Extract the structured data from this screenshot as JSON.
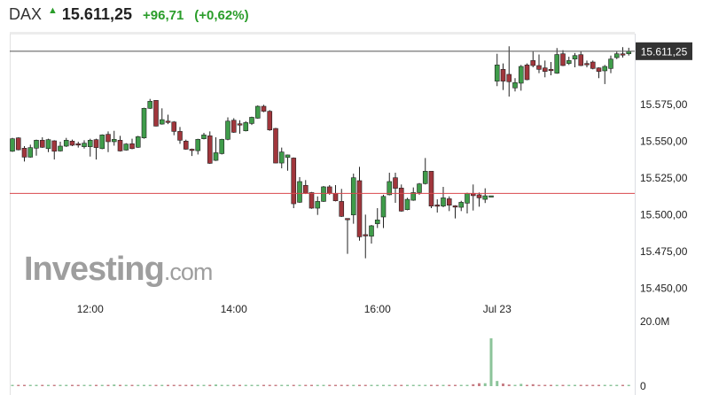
{
  "header": {
    "symbol": "DAX",
    "arrow_icon": "up-arrow-icon",
    "last": "15.611,25",
    "change": "+96,71",
    "change_pct": "(+0,62%)",
    "change_color": "#2a9d2a"
  },
  "watermark": {
    "brand": "Investing",
    "suffix": ".com"
  },
  "chart_data": {
    "type": "candlestick",
    "interval": "5 min",
    "last_price": 15611.25,
    "last_price_label": "15.611,25",
    "previous_close": 15514.54,
    "ylim": [
      15444,
      15623
    ],
    "y_ticks": [
      {
        "v": 15575,
        "label": "15.575,00"
      },
      {
        "v": 15550,
        "label": "15.550,00"
      },
      {
        "v": 15525,
        "label": "15.525,00"
      },
      {
        "v": 15500,
        "label": "15.500,00"
      },
      {
        "v": 15475,
        "label": "15.475,00"
      },
      {
        "v": 15450,
        "label": "15.450,00"
      }
    ],
    "x_ticks": [
      {
        "session": 0,
        "time": "12:00",
        "label": "12:00"
      },
      {
        "session": 0,
        "time": "14:00",
        "label": "14:00"
      },
      {
        "session": 0,
        "time": "16:00",
        "label": "16:00"
      },
      {
        "session": 1,
        "time": "09:00",
        "label": "Jul 23"
      }
    ],
    "volume_unit": "M",
    "volume_ticks": [
      {
        "v": 20,
        "label": "20.0M"
      },
      {
        "v": 0,
        "label": "0"
      }
    ],
    "colors": {
      "up": "#3f9c4a",
      "down": "#a1363c",
      "outline": "#222222",
      "vol_up": "#8cc49a",
      "vol_down": "#c77d84",
      "prev_close_line": "#d9474d",
      "last_line": "#555555",
      "label_bg": "#333333"
    },
    "columns": [
      "time",
      "open",
      "high",
      "low",
      "close",
      "volume_M"
    ],
    "sessions": [
      {
        "candles": [
          [
            "10:55",
            15543.2,
            15552.3,
            15542.8,
            15551.7,
            0.4
          ],
          [
            "11:00",
            15552.3,
            15552.7,
            15543.8,
            15544.2,
            0.4
          ],
          [
            "11:05",
            15545.3,
            15546.7,
            15536.2,
            15539.2,
            0.4
          ],
          [
            "11:10",
            15539.2,
            15547.7,
            15538.8,
            15545.7,
            0.4
          ],
          [
            "11:15",
            15545.3,
            15551.1,
            15540.2,
            15550.7,
            0.4
          ],
          [
            "11:20",
            15550.7,
            15552.7,
            15545.5,
            15545.9,
            0.4
          ],
          [
            "11:25",
            15545.0,
            15551.7,
            15542.6,
            15551.1,
            0.4
          ],
          [
            "11:30",
            15550.3,
            15550.7,
            15537.6,
            15543.2,
            0.4
          ],
          [
            "11:35",
            15543.4,
            15549.7,
            15543.0,
            15546.7,
            0.4
          ],
          [
            "11:40",
            15546.7,
            15552.3,
            15546.1,
            15550.7,
            0.4
          ],
          [
            "11:45",
            15550.1,
            15551.1,
            15546.7,
            15547.3,
            0.4
          ],
          [
            "11:50",
            15548.3,
            15549.7,
            15545.7,
            15547.5,
            0.4
          ],
          [
            "11:55",
            15546.3,
            15550.7,
            15545.0,
            15548.7,
            0.4
          ],
          [
            "12:00",
            15546.3,
            15551.7,
            15539.6,
            15550.7,
            0.4
          ],
          [
            "12:05",
            15551.1,
            15551.7,
            15537.6,
            15545.7,
            0.4
          ],
          [
            "12:10",
            15545.0,
            15554.7,
            15544.6,
            15554.3,
            0.4
          ],
          [
            "12:15",
            15554.7,
            15556.7,
            15542.6,
            15549.7,
            0.4
          ],
          [
            "12:20",
            15549.7,
            15557.1,
            15547.0,
            15551.3,
            0.5
          ],
          [
            "12:25",
            15550.7,
            15553.7,
            15543.0,
            15543.4,
            0.4
          ],
          [
            "12:30",
            15544.0,
            15548.7,
            15543.6,
            15548.1,
            0.4
          ],
          [
            "12:35",
            15548.3,
            15551.7,
            15544.6,
            15545.0,
            0.4
          ],
          [
            "12:40",
            15545.9,
            15553.7,
            15545.5,
            15553.1,
            0.4
          ],
          [
            "12:45",
            15552.3,
            15572.8,
            15551.7,
            15572.4,
            0.4
          ],
          [
            "12:50",
            15572.4,
            15578.8,
            15572.0,
            15577.2,
            0.4
          ],
          [
            "12:55",
            15577.8,
            15577.8,
            15560.1,
            15560.3,
            0.4
          ],
          [
            "13:00",
            15561.7,
            15572.4,
            15561.3,
            15564.7,
            0.4
          ],
          [
            "13:05",
            15563.7,
            15568.1,
            15561.7,
            15563.3,
            0.4
          ],
          [
            "13:10",
            15563.1,
            15563.7,
            15554.1,
            15556.7,
            0.4
          ],
          [
            "13:15",
            15556.7,
            15559.7,
            15548.3,
            15550.7,
            0.4
          ],
          [
            "13:20",
            15550.1,
            15551.1,
            15544.2,
            15544.6,
            0.4
          ],
          [
            "13:25",
            15544.6,
            15545.0,
            15540.0,
            15544.4,
            0.4
          ],
          [
            "13:30",
            15543.6,
            15551.7,
            15541.0,
            15551.3,
            0.4
          ],
          [
            "13:35",
            15551.7,
            15555.7,
            15551.3,
            15554.3,
            0.4
          ],
          [
            "13:40",
            15553.7,
            15556.7,
            15534.6,
            15535.0,
            0.4
          ],
          [
            "13:45",
            15537.0,
            15552.7,
            15536.6,
            15542.2,
            0.5
          ],
          [
            "13:50",
            15541.6,
            15551.7,
            15541.0,
            15551.3,
            0.4
          ],
          [
            "13:55",
            15551.3,
            15566.3,
            15550.7,
            15563.7,
            0.4
          ],
          [
            "14:00",
            15564.3,
            15565.7,
            15555.7,
            15556.1,
            0.4
          ],
          [
            "14:05",
            15561.9,
            15564.3,
            15555.1,
            15561.5,
            0.4
          ],
          [
            "14:10",
            15557.1,
            15563.7,
            15556.7,
            15562.7,
            0.4
          ],
          [
            "14:15",
            15562.1,
            15566.7,
            15561.1,
            15566.3,
            0.4
          ],
          [
            "14:20",
            15565.7,
            15574.4,
            15565.3,
            15573.8,
            0.4
          ],
          [
            "14:25",
            15573.8,
            15574.8,
            15569.8,
            15570.4,
            0.4
          ],
          [
            "14:30",
            15570.4,
            15571.2,
            15557.1,
            15557.7,
            0.4
          ],
          [
            "14:35",
            15558.7,
            15559.1,
            15535.0,
            15535.2,
            0.4
          ],
          [
            "14:40",
            15535.2,
            15545.7,
            15531.6,
            15542.7,
            0.4
          ],
          [
            "14:45",
            15539.0,
            15541.0,
            15530.0,
            15540.7,
            0.4
          ],
          [
            "14:50",
            15538.6,
            15539.0,
            15504.5,
            15507.5,
            0.4
          ],
          [
            "14:55",
            15508.5,
            15525.6,
            15508.1,
            15522.6,
            0.4
          ],
          [
            "15:00",
            15520.0,
            15523.6,
            15514.1,
            15514.6,
            0.4
          ],
          [
            "15:05",
            15515.1,
            15515.5,
            15504.1,
            15504.5,
            0.4
          ],
          [
            "15:10",
            15504.5,
            15512.5,
            15499.9,
            15509.1,
            0.4
          ],
          [
            "15:15",
            15509.1,
            15519.6,
            15508.7,
            15519.0,
            0.4
          ],
          [
            "15:20",
            15519.0,
            15520.2,
            15513.6,
            15514.6,
            0.4
          ],
          [
            "15:25",
            15514.6,
            15520.2,
            15509.1,
            15509.5,
            0.4
          ],
          [
            "15:30",
            15509.1,
            15517.6,
            15498.5,
            15498.9,
            0.4
          ],
          [
            "15:35",
            15497.5,
            15497.5,
            15473.4,
            15497.3,
            0.4
          ],
          [
            "15:40",
            15499.9,
            15528.0,
            15493.9,
            15525.2,
            0.4
          ],
          [
            "15:45",
            15523.2,
            15532.6,
            15482.4,
            15485.0,
            0.4
          ],
          [
            "15:50",
            15486.5,
            15500.1,
            15470.4,
            15486.1,
            0.4
          ],
          [
            "15:55",
            15485.4,
            15493.1,
            15480.4,
            15492.5,
            0.4
          ],
          [
            "16:00",
            15493.9,
            15504.5,
            15491.0,
            15496.5,
            0.4
          ],
          [
            "16:05",
            15498.5,
            15513.6,
            15491.0,
            15512.5,
            0.4
          ],
          [
            "16:10",
            15513.6,
            15528.6,
            15513.2,
            15522.6,
            0.4
          ],
          [
            "16:15",
            15525.2,
            15528.6,
            15508.1,
            15518.0,
            0.4
          ],
          [
            "16:20",
            15518.2,
            15520.6,
            15502.1,
            15502.5,
            0.4
          ],
          [
            "16:25",
            15503.5,
            15511.5,
            15503.1,
            15510.5,
            0.4
          ],
          [
            "16:30",
            15509.9,
            15518.6,
            15509.5,
            15515.1,
            0.4
          ],
          [
            "16:35",
            15515.1,
            15521.6,
            15513.6,
            15521.0,
            0.4
          ],
          [
            "16:40",
            15521.2,
            15538.6,
            15520.6,
            15529.6,
            0.4
          ],
          [
            "16:45",
            15529.6,
            15529.6,
            15504.5,
            15505.9,
            0.4
          ],
          [
            "16:50",
            15506.7,
            15510.5,
            15501.5,
            15506.1,
            0.4
          ],
          [
            "16:55",
            15505.9,
            15519.0,
            15505.1,
            15511.5,
            0.4
          ],
          [
            "17:00",
            15510.9,
            15512.5,
            15502.5,
            15506.5,
            0.4
          ],
          [
            "17:05",
            15506.1,
            15506.5,
            15497.5,
            15505.5,
            0.4
          ],
          [
            "17:10",
            15505.1,
            15509.5,
            15502.5,
            15508.5,
            0.4
          ],
          [
            "17:15",
            15507.9,
            15515.0,
            15500.9,
            15514.6,
            0.4
          ],
          [
            "17:20",
            15514.6,
            15520.6,
            15502.9,
            15513.0,
            0.6
          ],
          [
            "17:25",
            15513.6,
            15515.1,
            15505.5,
            15511.5,
            0.9
          ],
          [
            "17:30",
            15510.5,
            15518.0,
            15508.0,
            15512.9,
            0.9
          ],
          [
            "17:35",
            15512.9,
            15512.9,
            15512.9,
            15512.9,
            14.8
          ]
        ]
      },
      {
        "label": "Jul 23",
        "candles": [
          [
            "09:00",
            15590.9,
            15609.5,
            15587.5,
            15601.9,
            1.6
          ],
          [
            "09:05",
            15598.9,
            15602.9,
            15584.9,
            15590.9,
            0.8
          ],
          [
            "09:10",
            15595.5,
            15614.6,
            15580.4,
            15590.5,
            0.5
          ],
          [
            "09:15",
            15586.3,
            15592.9,
            15583.9,
            15589.9,
            0.4
          ],
          [
            "09:20",
            15589.5,
            15601.9,
            15584.4,
            15600.9,
            0.7
          ],
          [
            "09:25",
            15601.9,
            15602.9,
            15591.5,
            15591.9,
            0.4
          ],
          [
            "09:30",
            15604.9,
            15611.0,
            15600.3,
            15601.5,
            0.6
          ],
          [
            "09:35",
            15601.5,
            15609.0,
            15596.3,
            15598.9,
            0.4
          ],
          [
            "09:40",
            15599.9,
            15604.9,
            15593.5,
            15597.5,
            0.4
          ],
          [
            "09:45",
            15598.9,
            15603.9,
            15594.9,
            15598.3,
            0.4
          ],
          [
            "09:50",
            15596.3,
            15613.4,
            15595.9,
            15609.0,
            0.4
          ],
          [
            "09:55",
            15609.5,
            15612.0,
            15601.1,
            15601.5,
            0.4
          ],
          [
            "10:00",
            15602.9,
            15607.5,
            15601.9,
            15604.9,
            0.4
          ],
          [
            "10:05",
            15605.9,
            15610.0,
            15600.3,
            15608.3,
            0.4
          ],
          [
            "10:10",
            15608.9,
            15611.0,
            15601.1,
            15601.5,
            0.4
          ],
          [
            "10:15",
            15602.9,
            15604.9,
            15600.3,
            15602.3,
            0.4
          ],
          [
            "10:20",
            15603.9,
            15604.9,
            15598.9,
            15599.5,
            0.4
          ],
          [
            "10:25",
            15599.9,
            15600.3,
            15592.9,
            15597.5,
            0.4
          ],
          [
            "10:30",
            15597.9,
            15601.9,
            15588.9,
            15600.9,
            0.4
          ],
          [
            "10:35",
            15599.5,
            15608.3,
            15596.3,
            15605.9,
            0.4
          ],
          [
            "10:40",
            15606.9,
            15611.0,
            15605.9,
            15609.5,
            0.4
          ],
          [
            "10:45",
            15609.5,
            15614.0,
            15606.9,
            15609.0,
            0.4
          ],
          [
            "10:50",
            15609.5,
            15613.6,
            15608.3,
            15611.25,
            0.4
          ]
        ]
      }
    ]
  }
}
